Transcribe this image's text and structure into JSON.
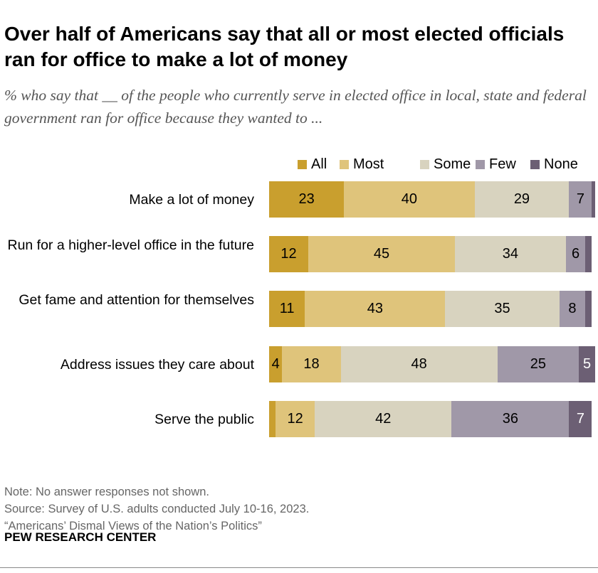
{
  "chart_data": {
    "type": "bar",
    "orientation": "horizontal",
    "stacked": true,
    "title": "Over half of Americans say that all or most elected officials ran for office to make a lot of money",
    "subtitle": "% who say that __ of the people who currently serve in elected office in local, state and federal government ran for office because they wanted to ...",
    "categories": [
      "Make a lot of money",
      "Run for a higher-level office in the future",
      "Get fame and attention for themselves",
      "Address issues they care about",
      "Serve the public"
    ],
    "series": [
      {
        "name": "All",
        "color": "#C99F2E",
        "values": [
          23,
          12,
          11,
          4,
          2
        ],
        "labels": [
          "23",
          "12",
          "11",
          "4",
          ""
        ]
      },
      {
        "name": "Most",
        "color": "#DFC47B",
        "values": [
          40,
          45,
          43,
          18,
          12
        ],
        "labels": [
          "40",
          "45",
          "43",
          "18",
          "12"
        ]
      },
      {
        "name": "Some",
        "color": "#D8D3BF",
        "values": [
          29,
          34,
          35,
          48,
          42
        ],
        "labels": [
          "29",
          "34",
          "35",
          "48",
          "42"
        ]
      },
      {
        "name": "Few",
        "color": "#A098A8",
        "values": [
          7,
          6,
          8,
          25,
          36
        ],
        "labels": [
          "7",
          "6",
          "8",
          "25",
          "36"
        ]
      },
      {
        "name": "None",
        "color": "#6C5F74",
        "values": [
          1,
          2,
          2,
          5,
          7
        ],
        "labels": [
          "",
          "",
          "",
          "5",
          "7"
        ]
      }
    ],
    "legend_position": "top",
    "grid": false
  },
  "notes": {
    "note": "Note: No answer responses not shown.",
    "source": "Source: Survey of U.S. adults conducted July 10-16, 2023.",
    "report": "“Americans’ Dismal Views of the Nation’s Politics”"
  },
  "org": "PEW RESEARCH CENTER"
}
